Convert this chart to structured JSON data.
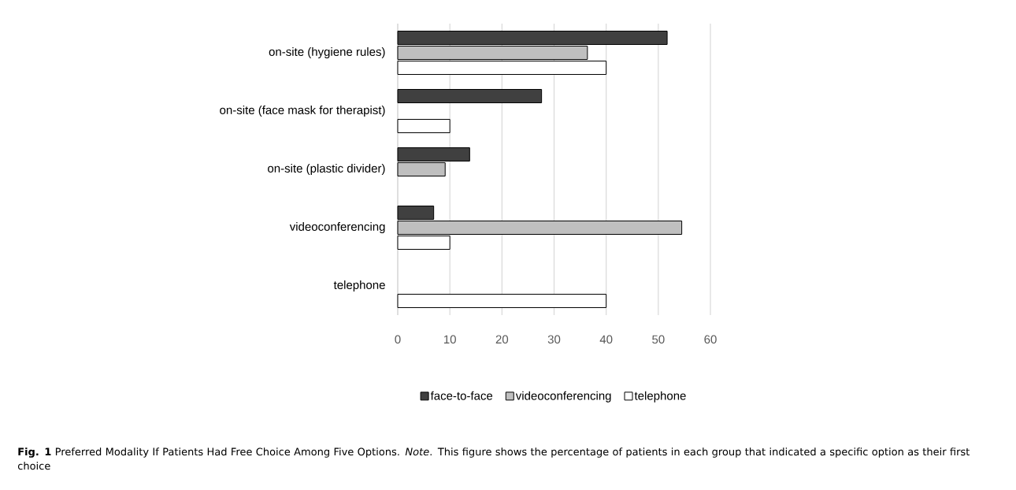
{
  "chart_data": {
    "type": "bar",
    "orientation": "horizontal",
    "categories": [
      "on-site (hygiene rules)",
      "on-site (face mask for therapist)",
      "on-site (plastic divider)",
      "videoconferencing",
      "telephone"
    ],
    "series": [
      {
        "name": "face-to-face",
        "color": "#404040",
        "values": [
          51.7,
          27.6,
          13.8,
          6.9,
          null
        ]
      },
      {
        "name": "videoconferencing",
        "color": "#bfbfbf",
        "values": [
          36.4,
          null,
          9.1,
          54.5,
          null
        ]
      },
      {
        "name": "telephone",
        "color": "#ffffff",
        "values": [
          40,
          10,
          null,
          10,
          40
        ]
      }
    ],
    "xlim": [
      0,
      60
    ],
    "xticks": [
      0,
      10,
      20,
      30,
      40,
      50,
      60
    ],
    "grid": "x",
    "legend": "bottom",
    "annotations": [
      "**Fig. 1** Preferred Modality If Patients Had Free Choice Among Five Options. *Note*. This figure shows the percentage of patients in each group that indicated a specific option as their first choice"
    ]
  }
}
